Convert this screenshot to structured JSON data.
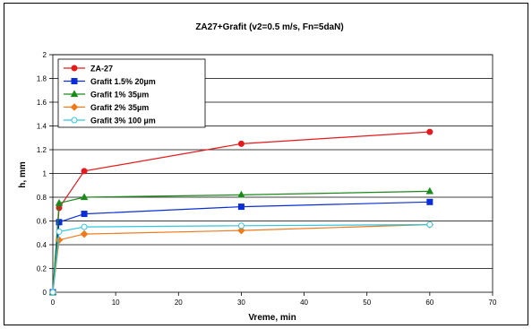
{
  "chart_data": {
    "type": "line",
    "title": "ZA27+Grafit (v2=0.5 m/s, Fn=5daN)",
    "xlabel": "Vreme, min",
    "ylabel": "h, mm",
    "xlim": [
      0,
      70
    ],
    "ylim": [
      0,
      2
    ],
    "x_ticks": [
      "0",
      "10",
      "20",
      "30",
      "40",
      "50",
      "60",
      "70"
    ],
    "y_ticks": [
      "0",
      "0.2",
      "0.4",
      "0.6",
      "0.8",
      "1",
      "1.2",
      "1.4",
      "1.6",
      "1.8",
      "2"
    ],
    "grid": "horizontal",
    "legend_position": "top-left",
    "x": [
      0,
      1,
      5,
      30,
      60
    ],
    "series": [
      {
        "name": "ZA-27",
        "color": "#e41a1c",
        "marker": "circle",
        "filled": true,
        "values": [
          0,
          0.71,
          1.02,
          1.25,
          1.35
        ]
      },
      {
        "name": "Grafit 1.5% 20µm",
        "color": "#0a2ed6",
        "marker": "square",
        "filled": true,
        "values": [
          0,
          0.59,
          0.66,
          0.72,
          0.76
        ]
      },
      {
        "name": "Grafit 1% 35µm",
        "color": "#1a8a1a",
        "marker": "triangle",
        "filled": true,
        "values": [
          0,
          0.75,
          0.8,
          0.82,
          0.85
        ]
      },
      {
        "name": "Grafit 2% 35µm",
        "color": "#f07b1b",
        "marker": "diamond",
        "filled": true,
        "values": [
          0,
          0.44,
          0.49,
          0.52,
          0.57
        ]
      },
      {
        "name": "Grafit 3% 100 µm",
        "color": "#33c6e0",
        "marker": "circle",
        "filled": false,
        "values": [
          0,
          0.51,
          0.55,
          0.56,
          0.57
        ]
      }
    ]
  }
}
